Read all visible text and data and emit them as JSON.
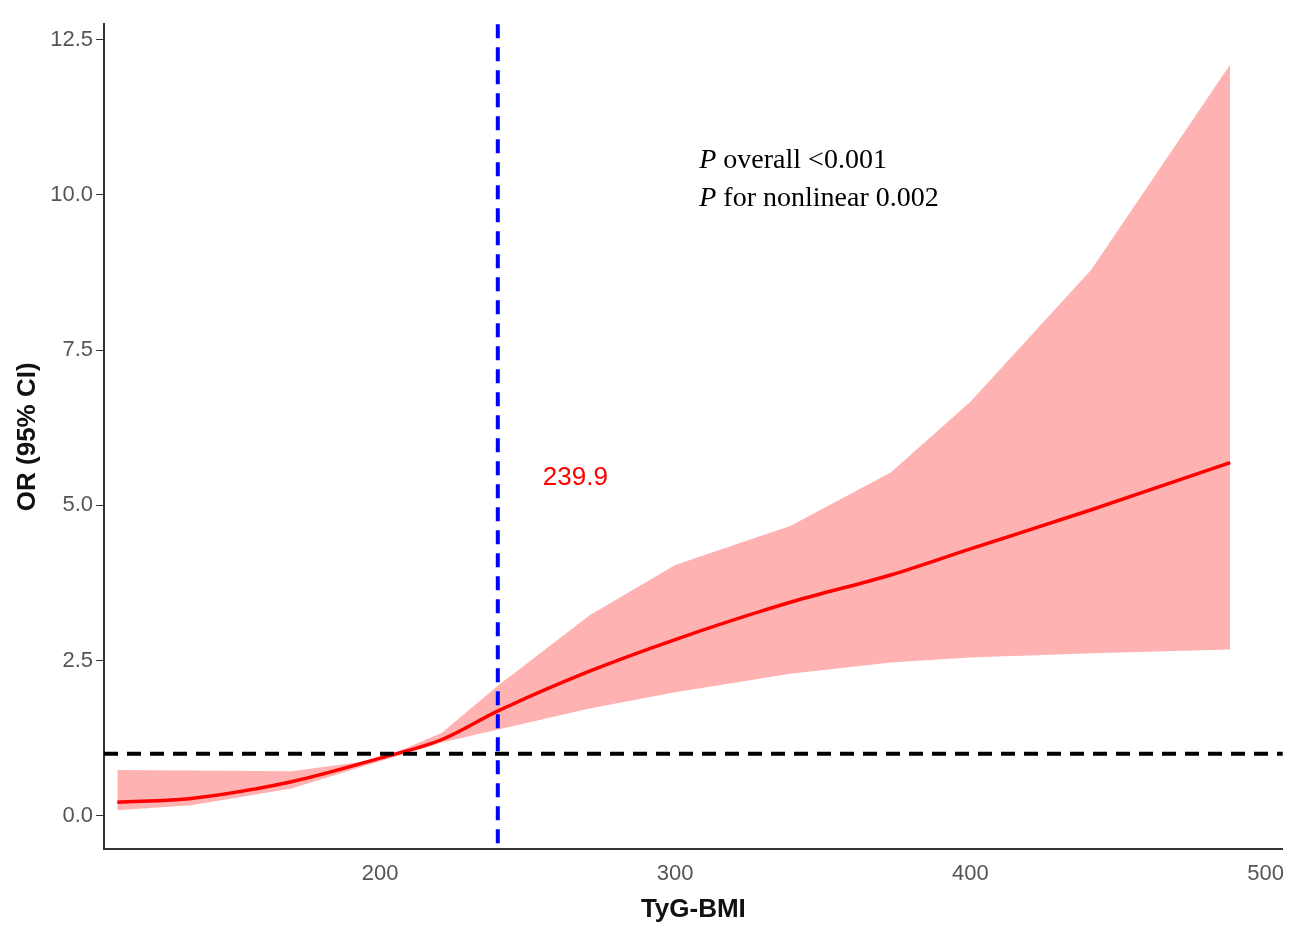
{
  "chart_data": {
    "type": "line",
    "xlabel": "TyG-BMI",
    "ylabel": "OR (95% CI)",
    "xlim": [
      106.5,
      505.8
    ],
    "xticks": [
      200,
      300,
      400,
      500
    ],
    "ylim": [
      -0.54,
      12.75
    ],
    "yticks": [
      {
        "value": 0,
        "label": "0.0"
      },
      2.5,
      {
        "value": 5,
        "label": "5.0"
      },
      7.5,
      {
        "value": 10,
        "label": "10.0"
      },
      12.5
    ],
    "grid": false,
    "legend": false,
    "marker": "none",
    "line_style": "solid",
    "series": [
      {
        "color": "#ff0000",
        "x": [
          111,
          136,
          170,
          200,
          221,
          240,
          271,
          300,
          339,
          373,
          400,
          441,
          488
        ],
        "values": [
          0.22,
          0.28,
          0.55,
          0.93,
          1.23,
          1.69,
          2.33,
          2.84,
          3.44,
          3.88,
          4.3,
          4.93,
          5.69
        ],
        "lower": [
          0.09,
          0.17,
          0.44,
          0.88,
          1.18,
          1.39,
          1.73,
          1.99,
          2.29,
          2.47,
          2.55,
          2.62,
          2.68
        ],
        "upper": [
          0.74,
          0.73,
          0.72,
          0.91,
          1.34,
          2.1,
          3.23,
          4.04,
          4.67,
          5.53,
          6.67,
          8.8,
          12.1
        ]
      }
    ],
    "ref_lines": [
      {
        "axis": "y",
        "value": 1,
        "color": "#000000",
        "line_style": "dashed"
      },
      {
        "axis": "x",
        "value": 239.9,
        "label": "239.9",
        "color": "#0000ff",
        "line_style": "dashed"
      }
    ],
    "annotations": [
      "P overall <0.001",
      "P for nonlinear 0.002"
    ]
  }
}
